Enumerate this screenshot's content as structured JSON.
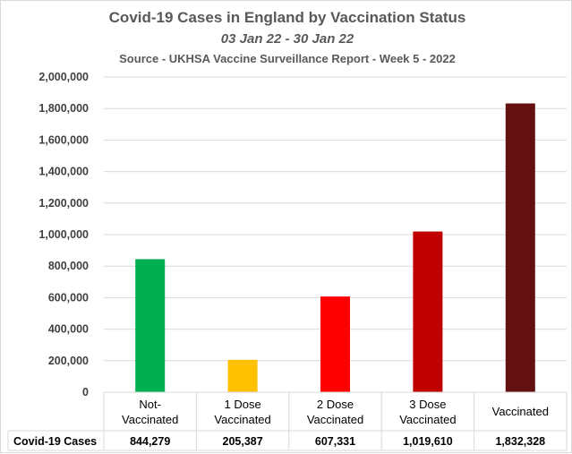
{
  "chart_data": {
    "type": "bar",
    "title": "Covid-19 Cases in England by Vaccination Status",
    "subtitle": "03 Jan 22 - 30 Jan 22",
    "source": "Source - UKHSA Vaccine Surveillance Report - Week 5 - 2022",
    "categories": [
      [
        "Not-",
        "Vaccinated"
      ],
      [
        "1 Dose",
        "Vaccinated"
      ],
      [
        "2 Dose",
        "Vaccinated"
      ],
      [
        "3 Dose",
        "Vaccinated"
      ],
      [
        "Vaccinated"
      ]
    ],
    "series": [
      {
        "name": "Covid-19 Cases",
        "values": [
          844279,
          205387,
          607331,
          1019610,
          1832328
        ],
        "value_labels": [
          "844,279",
          "205,387",
          "607,331",
          "1,019,610",
          "1,832,328"
        ],
        "colors": [
          "#00b050",
          "#ffc000",
          "#ff0000",
          "#c00000",
          "#641010"
        ]
      }
    ],
    "ylim": [
      0,
      2000000
    ],
    "yticks": [
      0,
      200000,
      400000,
      600000,
      800000,
      1000000,
      1200000,
      1400000,
      1600000,
      1800000,
      2000000
    ],
    "ytick_labels": [
      "0",
      "200,000",
      "400,000",
      "600,000",
      "800,000",
      "1,000,000",
      "1,200,000",
      "1,400,000",
      "1,600,000",
      "1,800,000",
      "2,000,000"
    ],
    "grid": true,
    "data_table": true
  }
}
